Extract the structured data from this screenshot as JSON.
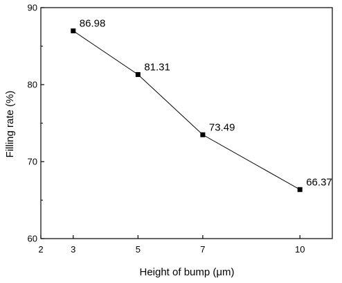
{
  "chart_data": {
    "type": "line",
    "title": "",
    "xlabel": "Height of bump (μm)",
    "ylabel": "Filling rate (%)",
    "xlim": [
      2,
      11
    ],
    "ylim": [
      60,
      90
    ],
    "xticks": [
      2,
      3,
      5,
      7,
      10
    ],
    "yticks": [
      60,
      70,
      80,
      90
    ],
    "grid": false,
    "legend": "none",
    "series": [
      {
        "x": [
          3,
          5,
          7,
          10
        ],
        "y": [
          86.98,
          81.31,
          73.49,
          66.37
        ],
        "labels": [
          "86.98",
          "81.31",
          "73.49",
          "66.37"
        ],
        "marker": "square",
        "color": "#000000"
      }
    ]
  }
}
